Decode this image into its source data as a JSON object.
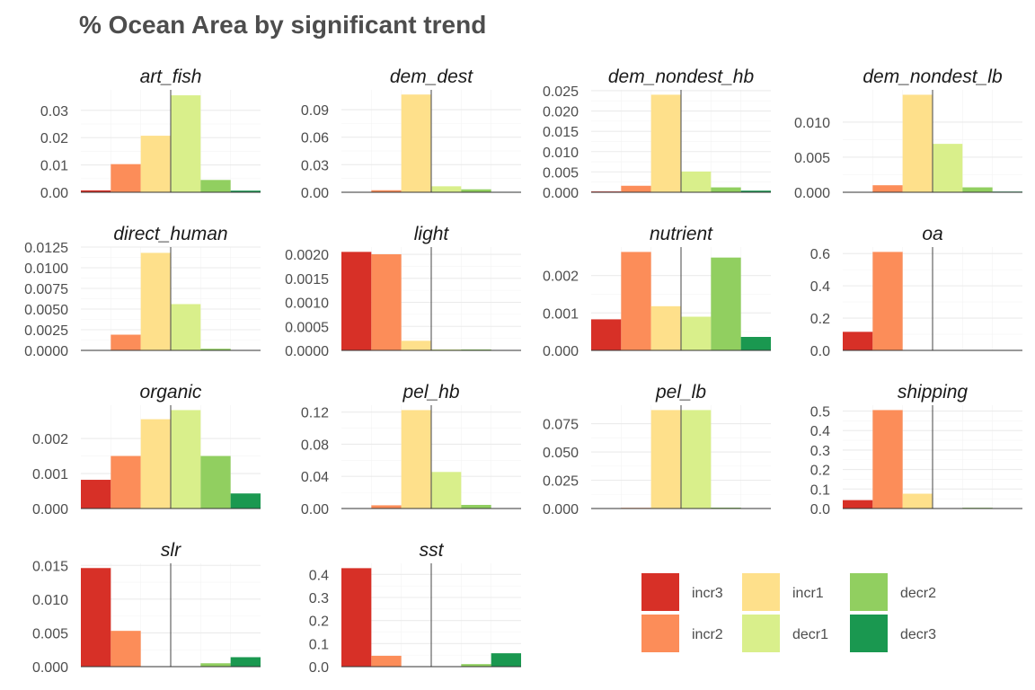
{
  "chart_data": {
    "type": "bar",
    "title": "% Ocean Area by significant trend",
    "categories": [
      "incr3",
      "incr2",
      "incr1",
      "decr1",
      "decr2",
      "decr3"
    ],
    "colors": {
      "incr3": "#d73027",
      "incr2": "#fc8d59",
      "incr1": "#fee08b",
      "decr1": "#d9ef8b",
      "decr2": "#91cf60",
      "decr3": "#1a9850"
    },
    "legend": {
      "position": "bottom-right",
      "columns": 3,
      "order": [
        [
          "incr3",
          "incr2"
        ],
        [
          "incr1",
          "decr1"
        ],
        [
          "decr2",
          "decr3"
        ]
      ]
    },
    "panels": [
      {
        "name": "art_fish",
        "values": [
          0.0007,
          0.0103,
          0.0207,
          0.0355,
          0.0045,
          0.0006
        ],
        "ylim": [
          0,
          0.0375
        ],
        "ticks": [
          0,
          0.01,
          0.02,
          0.03
        ],
        "tick_labels": [
          "0.00",
          "0.01",
          "0.02",
          "0.03"
        ]
      },
      {
        "name": "dem_dest",
        "values": [
          0.0003,
          0.0022,
          0.1065,
          0.0065,
          0.0032,
          0.0005
        ],
        "ylim": [
          0,
          0.1116
        ],
        "ticks": [
          0,
          0.03,
          0.06,
          0.09
        ],
        "tick_labels": [
          "0.00",
          "0.03",
          "0.06",
          "0.09"
        ]
      },
      {
        "name": "dem_nondest_hb",
        "values": [
          0.0002,
          0.0016,
          0.024,
          0.0051,
          0.0012,
          0.0004
        ],
        "ylim": [
          0,
          0.0252
        ],
        "ticks": [
          0,
          0.005,
          0.01,
          0.015,
          0.02,
          0.025
        ],
        "tick_labels": [
          "0.000",
          "0.005",
          "0.010",
          "0.015",
          "0.020",
          "0.025"
        ]
      },
      {
        "name": "dem_nondest_lb",
        "values": [
          0,
          0.001,
          0.0139,
          0.0069,
          0.0007,
          0.0001
        ],
        "ylim": [
          0,
          0.0146
        ],
        "ticks": [
          0,
          0.005,
          0.01
        ],
        "tick_labels": [
          "0.000",
          "0.005",
          "0.010"
        ]
      },
      {
        "name": "direct_human",
        "values": [
          0,
          0.0019,
          0.0118,
          0.0056,
          0.0002,
          0
        ],
        "ylim": [
          0,
          0.0125
        ],
        "ticks": [
          0,
          0.0025,
          0.005,
          0.0075,
          0.01,
          0.0125
        ],
        "tick_labels": [
          "0.0000",
          "0.0025",
          "0.0050",
          "0.0075",
          "0.0100",
          "0.0125"
        ]
      },
      {
        "name": "light",
        "values": [
          0.00205,
          0.002,
          0.0002,
          2e-05,
          2e-05,
          0
        ],
        "ylim": [
          0,
          0.00215
        ],
        "ticks": [
          0,
          0.0005,
          0.001,
          0.0015,
          0.002
        ],
        "tick_labels": [
          "0.0000",
          "0.0005",
          "0.0010",
          "0.0015",
          "0.0020"
        ]
      },
      {
        "name": "nutrient",
        "values": [
          0.00083,
          0.00263,
          0.00118,
          0.0009,
          0.00248,
          0.00036
        ],
        "ylim": [
          0,
          0.00276
        ],
        "ticks": [
          0,
          0.001,
          0.002
        ],
        "tick_labels": [
          "0.000",
          "0.001",
          "0.002"
        ]
      },
      {
        "name": "oa",
        "values": [
          0.115,
          0.61,
          0,
          0,
          0,
          0
        ],
        "ylim": [
          0,
          0.64
        ],
        "ticks": [
          0,
          0.2,
          0.4,
          0.6
        ],
        "tick_labels": [
          "0.0",
          "0.2",
          "0.4",
          "0.6"
        ]
      },
      {
        "name": "organic",
        "values": [
          0.00082,
          0.0015,
          0.00255,
          0.00281,
          0.0015,
          0.00043
        ],
        "ylim": [
          0,
          0.00295
        ],
        "ticks": [
          0,
          0.001,
          0.002
        ],
        "tick_labels": [
          "0.000",
          "0.001",
          "0.002"
        ]
      },
      {
        "name": "pel_hb",
        "values": [
          0,
          0.004,
          0.1225,
          0.0455,
          0.0045,
          0
        ],
        "ylim": [
          0,
          0.1286
        ],
        "ticks": [
          0,
          0.04,
          0.08,
          0.12
        ],
        "tick_labels": [
          "0.00",
          "0.04",
          "0.08",
          "0.12"
        ]
      },
      {
        "name": "pel_lb",
        "values": [
          0,
          0.0006,
          0.087,
          0.087,
          0.0008,
          0
        ],
        "ylim": [
          0,
          0.0913
        ],
        "ticks": [
          0,
          0.025,
          0.05,
          0.075
        ],
        "tick_labels": [
          "0.000",
          "0.025",
          "0.050",
          "0.075"
        ]
      },
      {
        "name": "shipping",
        "values": [
          0.043,
          0.505,
          0.076,
          0.002,
          0.004,
          0
        ],
        "ylim": [
          0,
          0.53
        ],
        "ticks": [
          0,
          0.1,
          0.2,
          0.3,
          0.4,
          0.5
        ],
        "tick_labels": [
          "0.0",
          "0.1",
          "0.2",
          "0.3",
          "0.4",
          "0.5"
        ]
      },
      {
        "name": "slr",
        "values": [
          0.0146,
          0.0053,
          0,
          0,
          0.0005,
          0.0014
        ],
        "ylim": [
          0,
          0.0153
        ],
        "ticks": [
          0,
          0.005,
          0.01,
          0.015
        ],
        "tick_labels": [
          "0.000",
          "0.005",
          "0.010",
          "0.015"
        ]
      },
      {
        "name": "sst",
        "values": [
          0.427,
          0.047,
          0,
          0,
          0.011,
          0.058
        ],
        "ylim": [
          0,
          0.448
        ],
        "ticks": [
          0,
          0.1,
          0.2,
          0.3,
          0.4
        ],
        "tick_labels": [
          "0.0",
          "0.1",
          "0.2",
          "0.3",
          "0.4"
        ]
      }
    ]
  }
}
